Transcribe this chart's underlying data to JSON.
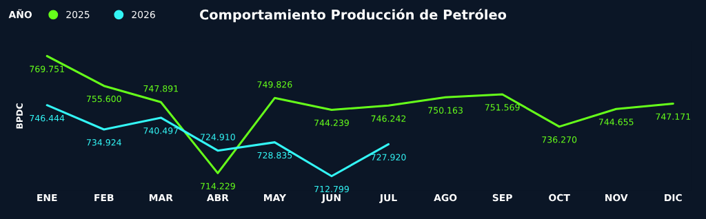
{
  "chart_data": {
    "type": "line",
    "title": "Comportamiento Producción de Petróleo",
    "ylabel": "BPDC",
    "legend_title": "AÑO",
    "legend": "top left",
    "grid": false,
    "marker": "none",
    "line_style": "solid",
    "tick_labels": "x",
    "categories": [
      "ENE",
      "FEB",
      "MAR",
      "ABR",
      "MAY",
      "JUN",
      "JUL",
      "AGO",
      "SEP",
      "OCT",
      "NOV",
      "DIC"
    ],
    "series": [
      {
        "name": "2025",
        "color": "#66ff1a",
        "values": [
          769751,
          755600,
          747891,
          714229,
          749826,
          744239,
          746242,
          750163,
          751569,
          736270,
          744655,
          747171
        ],
        "value_labels": [
          "769.751",
          "755.600",
          "747.891",
          "714.229",
          "749.826",
          "744.239",
          "746.242",
          "750.163",
          "751.569",
          "736.270",
          "744.655",
          "747.171"
        ]
      },
      {
        "name": "2026",
        "color": "#33f5f5",
        "values": [
          746444,
          734924,
          740497,
          724910,
          728835,
          712799,
          727920,
          null,
          null,
          null,
          null,
          null
        ],
        "value_labels": [
          "746.444",
          "734.924",
          "740.497",
          "724.910",
          "728.835",
          "712.799",
          "727.920",
          null,
          null,
          null,
          null,
          null
        ]
      }
    ]
  }
}
